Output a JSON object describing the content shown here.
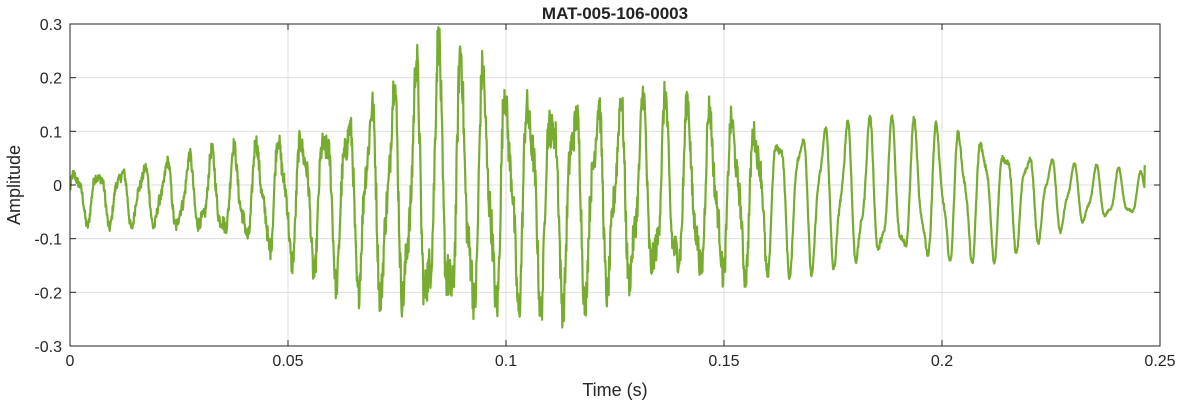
{
  "chart_data": {
    "type": "line",
    "title": "MAT-005-106-0003",
    "xlabel": "Time (s)",
    "ylabel": "Amplitude",
    "xlim": [
      0,
      0.25
    ],
    "ylim": [
      -0.3,
      0.3
    ],
    "xticks": [
      0,
      0.05,
      0.1,
      0.15,
      0.2,
      0.25
    ],
    "xtick_labels": [
      "0",
      "0.05",
      "0.1",
      "0.15",
      "0.2",
      "0.25"
    ],
    "yticks": [
      -0.3,
      -0.2,
      -0.1,
      0,
      0.1,
      0.2,
      0.3
    ],
    "ytick_labels": [
      "-0.3",
      "-0.2",
      "-0.1",
      "0",
      "0.1",
      "0.2",
      "0.3"
    ],
    "grid": true,
    "line_color": "#77ac30",
    "series": [
      {
        "x_start": 0,
        "x_end": 0.2465,
        "envelope": [
          [
            0,
            0.05
          ],
          [
            0.02,
            0.06
          ],
          [
            0.04,
            0.09
          ],
          [
            0.05,
            0.12
          ],
          [
            0.06,
            0.15
          ],
          [
            0.07,
            0.19
          ],
          [
            0.08,
            0.24
          ],
          [
            0.085,
            0.27
          ],
          [
            0.09,
            0.25
          ],
          [
            0.1,
            0.21
          ],
          [
            0.12,
            0.19
          ],
          [
            0.14,
            0.17
          ],
          [
            0.16,
            0.14
          ],
          [
            0.18,
            0.14
          ],
          [
            0.2,
            0.13
          ],
          [
            0.21,
            0.12
          ],
          [
            0.22,
            0.09
          ],
          [
            0.23,
            0.06
          ],
          [
            0.2465,
            0.04
          ]
        ],
        "oscillation_period": 0.0052,
        "offset": -0.02,
        "end_value": 0.037
      }
    ]
  }
}
